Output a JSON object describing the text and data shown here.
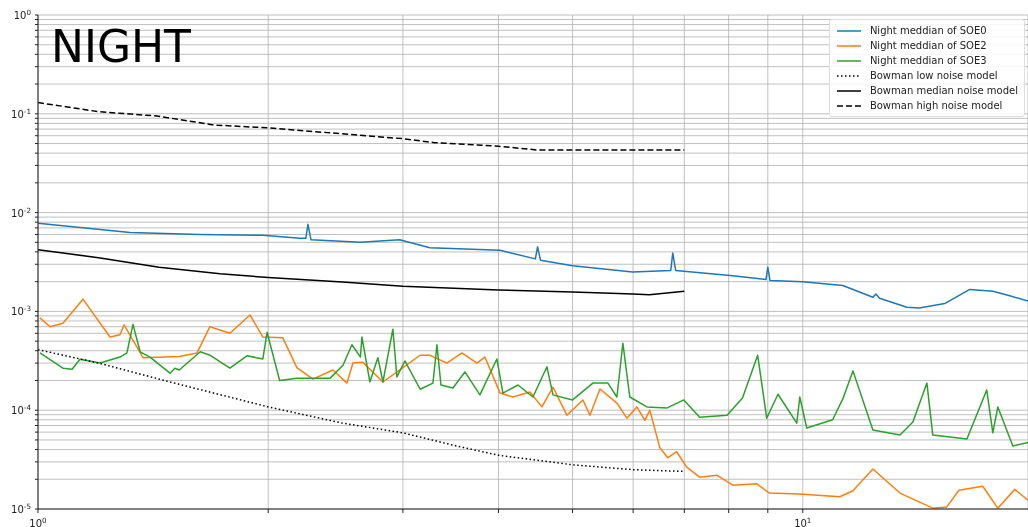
{
  "chart_data": {
    "type": "line",
    "title": "NIGHT",
    "log": "xy",
    "grid": true,
    "legend": "top right",
    "xlim": [
      1,
      19.7
    ],
    "xticks": [
      {
        "value": 1,
        "label": "10$^{0}$"
      },
      {
        "value": 2,
        "label": null
      },
      {
        "value": 3,
        "label": null
      },
      {
        "value": 4,
        "label": null
      },
      {
        "value": 5,
        "label": null
      },
      {
        "value": 6,
        "label": null
      },
      {
        "value": 7,
        "label": null
      },
      {
        "value": 8,
        "label": null
      },
      {
        "value": 9,
        "label": null
      },
      {
        "value": 10,
        "label": "10$^{1}$"
      }
    ],
    "ylim": [
      1e-05,
      1
    ],
    "yticks": [
      {
        "value": 1e-05,
        "label": "10$^{-5}$"
      },
      {
        "value": 2e-05,
        "label": null
      },
      {
        "value": 3e-05,
        "label": null
      },
      {
        "value": 4e-05,
        "label": null
      },
      {
        "value": 5e-05,
        "label": null
      },
      {
        "value": 6e-05,
        "label": null
      },
      {
        "value": 7e-05,
        "label": null
      },
      {
        "value": 8e-05,
        "label": null
      },
      {
        "value": 9e-05,
        "label": null
      },
      {
        "value": 0.0001,
        "label": "10$^{-4}$"
      },
      {
        "value": 0.0002,
        "label": null
      },
      {
        "value": 0.0003,
        "label": null
      },
      {
        "value": 0.0004,
        "label": null
      },
      {
        "value": 0.0005,
        "label": null
      },
      {
        "value": 0.0006,
        "label": null
      },
      {
        "value": 0.0007,
        "label": null
      },
      {
        "value": 0.0008,
        "label": null
      },
      {
        "value": 0.0009,
        "label": null
      },
      {
        "value": 0.001,
        "label": "10$^{-3}$"
      },
      {
        "value": 0.002,
        "label": null
      },
      {
        "value": 0.003,
        "label": null
      },
      {
        "value": 0.004,
        "label": null
      },
      {
        "value": 0.005,
        "label": null
      },
      {
        "value": 0.006,
        "label": null
      },
      {
        "value": 0.007,
        "label": null
      },
      {
        "value": 0.008,
        "label": null
      },
      {
        "value": 0.009,
        "label": null
      },
      {
        "value": 0.01,
        "label": "10$^{-2}$"
      },
      {
        "value": 0.02,
        "label": null
      },
      {
        "value": 0.03,
        "label": null
      },
      {
        "value": 0.04,
        "label": null
      },
      {
        "value": 0.05,
        "label": null
      },
      {
        "value": 0.06,
        "label": null
      },
      {
        "value": 0.07,
        "label": null
      },
      {
        "value": 0.08,
        "label": null
      },
      {
        "value": 0.09,
        "label": null
      },
      {
        "value": 0.1,
        "label": "10$^{-1}$"
      },
      {
        "value": 0.2,
        "label": null
      },
      {
        "value": 0.3,
        "label": null
      },
      {
        "value": 0.4,
        "label": null
      },
      {
        "value": 0.5,
        "label": null
      },
      {
        "value": 0.6,
        "label": null
      },
      {
        "value": 0.7,
        "label": null
      },
      {
        "value": 0.8,
        "label": null
      },
      {
        "value": 0.9,
        "label": null
      },
      {
        "value": 1,
        "label": "10$^{0}$"
      }
    ],
    "series": [
      {
        "name": "Night meddian of SOE0",
        "color": "#1f77b4",
        "line_style": "solid",
        "x": [
          1.0,
          1.319,
          1.63,
          1.968,
          2.2,
          2.24,
          2.254,
          2.275,
          2.64,
          2.97,
          3.254,
          4.02,
          4.47,
          4.5,
          4.54,
          5.0,
          5.99,
          6.72,
          6.76,
          6.82,
          8.1,
          8.95,
          9.0,
          9.06,
          10.0,
          11.28,
          12.35,
          12.46,
          12.6,
          13.68,
          14.2,
          15.33,
          16.53,
          17.72,
          18.6,
          19.7
        ],
        "values": [
          0.0078,
          0.0063,
          0.006,
          0.0059,
          0.0055,
          0.0055,
          0.0076,
          0.0053,
          0.005,
          0.0053,
          0.0044,
          0.00415,
          0.0034,
          0.0045,
          0.0033,
          0.0029,
          0.0025,
          0.0026,
          0.0039,
          0.0026,
          0.0023,
          0.0021,
          0.0028,
          0.00205,
          0.002,
          0.00183,
          0.00139,
          0.0015,
          0.00136,
          0.0011,
          0.00108,
          0.0012,
          0.00167,
          0.0016,
          0.00145,
          0.00127
        ]
      },
      {
        "name": "Night meddian of SOE2",
        "color": "#ff7f0e",
        "line_style": "solid",
        "x": [
          1.006,
          1.037,
          1.078,
          1.145,
          1.242,
          1.28,
          1.296,
          1.372,
          1.53,
          1.614,
          1.678,
          1.782,
          1.893,
          1.968,
          2.09,
          2.18,
          2.288,
          2.43,
          2.535,
          2.581,
          2.66,
          2.825,
          3.0,
          3.16,
          3.254,
          3.425,
          3.583,
          3.749,
          3.84,
          4.02,
          4.179,
          4.398,
          4.559,
          4.713,
          4.915,
          5.158,
          5.268,
          5.43,
          5.714,
          5.889,
          6.067,
          6.216,
          6.31,
          6.5,
          6.66,
          6.84,
          7.05,
          7.33,
          7.72,
          8.1,
          8.71,
          9.04,
          9.91,
          11.18,
          11.63,
          12.35,
          13.4,
          14.79,
          15.43,
          16.0,
          17.19,
          17.99,
          18.93,
          19.7
        ],
        "values": [
          0.00086,
          0.0007,
          0.00076,
          0.00133,
          0.00055,
          0.00058,
          0.00073,
          0.00034,
          0.00035,
          0.00038,
          0.0007,
          0.0006,
          0.00092,
          0.00055,
          0.00054,
          0.00027,
          0.000206,
          0.000255,
          0.000188,
          0.0003,
          0.000305,
          0.000193,
          0.00027,
          0.00036,
          0.00036,
          0.0003,
          0.00038,
          0.0003,
          0.000345,
          0.000149,
          0.000136,
          0.000153,
          0.000108,
          0.000171,
          8.9e-05,
          0.000127,
          8.9e-05,
          0.000164,
          0.000118,
          8.3e-05,
          0.000108,
          7.9e-05,
          0.0001,
          4.2e-05,
          3.3e-05,
          3.8e-05,
          2.65e-05,
          2.1e-05,
          2.2e-05,
          1.74e-05,
          1.8e-05,
          1.45e-05,
          1.42e-05,
          1.33e-05,
          1.53e-05,
          2.54e-05,
          1.45e-05,
          1.02e-05,
          1.05e-05,
          1.55e-05,
          1.7e-05,
          1.02e-05,
          1.58e-05,
          1.23e-05
        ]
      },
      {
        "name": "Night meddian of SOE3",
        "color": "#2ca02c",
        "line_style": "solid",
        "x": [
          1.006,
          1.078,
          1.108,
          1.135,
          1.205,
          1.28,
          1.307,
          1.331,
          1.36,
          1.401,
          1.488,
          1.51,
          1.53,
          1.63,
          1.678,
          1.782,
          1.876,
          1.968,
          1.993,
          2.07,
          2.18,
          2.408,
          2.505,
          2.573,
          2.64,
          2.652,
          2.716,
          2.782,
          2.825,
          2.911,
          2.946,
          3.018,
          3.16,
          3.284,
          3.324,
          3.364,
          3.488,
          3.616,
          3.783,
          3.981,
          4.054,
          4.242,
          4.437,
          4.629,
          4.713,
          5.0,
          5.315,
          5.561,
          5.714,
          5.818,
          5.94,
          6.254,
          6.64,
          6.99,
          7.33,
          7.96,
          8.34,
          8.73,
          8.97,
          9.28,
          9.82,
          9.91,
          10.12,
          10.94,
          11.28,
          11.63,
          12.35,
          13.4,
          13.93,
          14.53,
          14.79,
          16.39,
          17.4,
          17.72,
          17.99,
          18.82,
          19.7
        ],
        "values": [
          0.00038,
          0.000266,
          0.00026,
          0.000328,
          0.0003,
          0.000345,
          0.00038,
          0.00074,
          0.00039,
          0.000345,
          0.000237,
          0.000266,
          0.000255,
          0.00039,
          0.00036,
          0.000266,
          0.000355,
          0.00033,
          0.000615,
          0.0002,
          0.00021,
          0.00021,
          0.000285,
          0.00046,
          0.000345,
          0.00055,
          0.000193,
          0.00034,
          0.000193,
          0.00066,
          0.000217,
          0.000315,
          0.000163,
          0.000188,
          0.00046,
          0.00018,
          0.000168,
          0.000244,
          0.000143,
          0.00033,
          0.000149,
          0.00018,
          0.000136,
          0.000275,
          0.000143,
          0.000127,
          0.000188,
          0.000188,
          0.000136,
          0.000476,
          0.000136,
          0.000108,
          0.000105,
          0.000127,
          8.5e-05,
          8.9e-05,
          0.000133,
          0.00036,
          8.3e-05,
          0.000145,
          7.4e-05,
          0.000136,
          6.6e-05,
          8e-05,
          0.00013,
          0.00025,
          6.3e-05,
          5.6e-05,
          7.6e-05,
          0.000188,
          5.6e-05,
          5.1e-05,
          0.00016,
          5.9e-05,
          0.000108,
          4.35e-05,
          4.7e-05
        ]
      },
      {
        "name": "Bowman low noise model",
        "color": "#000000",
        "line_style": "dotted",
        "x": [
          1.0,
          1.2,
          1.5,
          2.0,
          2.5,
          3.0,
          3.5,
          4.0,
          5.0,
          6.0,
          7.0
        ],
        "values": [
          0.00041,
          0.0003,
          0.00019,
          0.000108,
          7.4e-05,
          5.9e-05,
          4.4e-05,
          3.5e-05,
          2.8e-05,
          2.5e-05,
          2.4e-05
        ]
      },
      {
        "name": "Bowman median noise model",
        "color": "#000000",
        "line_style": "solid",
        "x": [
          1.0,
          1.2,
          1.44,
          1.73,
          2.0,
          2.5,
          3.0,
          4.0,
          5.0,
          6.0,
          6.3,
          7.0
        ],
        "values": [
          0.0042,
          0.0035,
          0.0028,
          0.0024,
          0.0022,
          0.00198,
          0.0018,
          0.00165,
          0.00157,
          0.0015,
          0.00147,
          0.0016
        ]
      },
      {
        "name": "Bowman high noise model",
        "color": "#000000",
        "line_style": "dashed",
        "x": [
          1.0,
          1.2,
          1.43,
          1.7,
          2.0,
          3.0,
          3.3,
          4.0,
          4.5,
          7.0
        ],
        "values": [
          0.13,
          0.105,
          0.095,
          0.077,
          0.072,
          0.056,
          0.051,
          0.047,
          0.043,
          0.043
        ]
      }
    ]
  }
}
